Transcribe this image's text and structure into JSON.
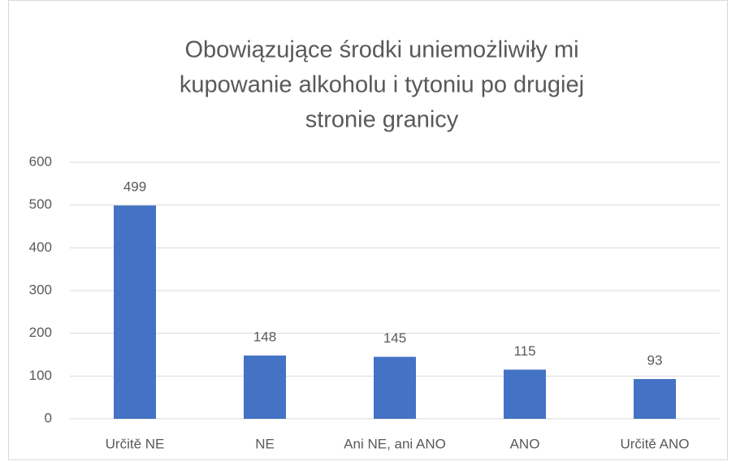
{
  "chart_data": {
    "type": "bar",
    "title": [
      "Obowiązujące środki uniemożliwiły mi",
      "kupowanie alkoholu i tytoniu po drugiej",
      "stronie granicy"
    ],
    "categories": [
      "Určitě NE",
      "NE",
      "Ani NE, ani ANO",
      "ANO",
      "Určitě ANO"
    ],
    "values": [
      499,
      148,
      145,
      115,
      93
    ],
    "color": "#4472c4",
    "ylim": [
      0,
      600
    ],
    "yticks": [
      0,
      100,
      200,
      300,
      400,
      500,
      600
    ],
    "grid": true
  }
}
